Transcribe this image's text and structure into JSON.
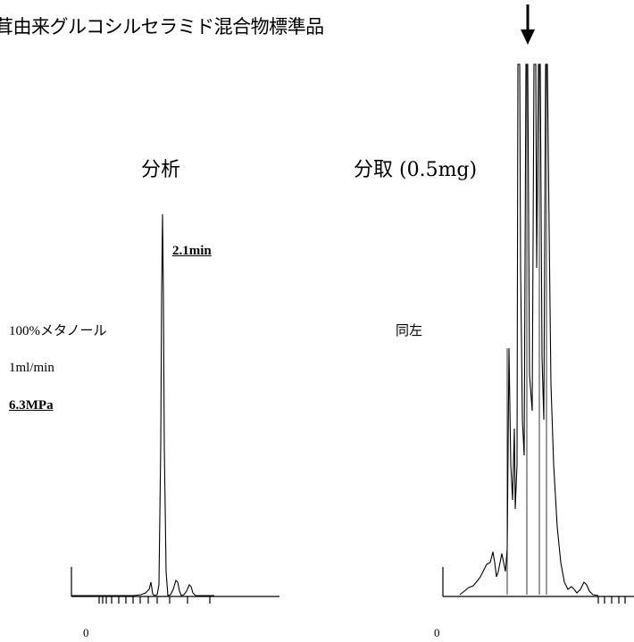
{
  "title": "茸由来グルコシルセラミド混合物標準品",
  "panels": {
    "analysis": {
      "title": "分析",
      "peak_label": "2.1min",
      "conditions": [
        "100%メタノール",
        "1ml/min",
        "6.3MPa"
      ],
      "zero": "0"
    },
    "prep": {
      "title": "分取 (0.5mg)",
      "conditions_same": "同左",
      "zero": "0"
    }
  }
}
